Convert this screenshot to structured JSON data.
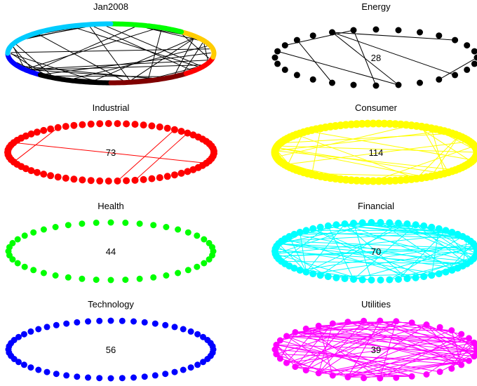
{
  "figure": {
    "panels": [
      {
        "key": "overview",
        "title": "Jan2008",
        "count": "",
        "color": "#000000",
        "nodes": 0,
        "edges": 40,
        "kind": "overview"
      },
      {
        "key": "energy",
        "title": "Energy",
        "count": "28",
        "color": "#000000",
        "nodes": 28,
        "edges": 8,
        "kind": "sector"
      },
      {
        "key": "industrial",
        "title": "Industrial",
        "count": "73",
        "color": "#ff0000",
        "nodes": 73,
        "edges": 4,
        "kind": "sector"
      },
      {
        "key": "consumer",
        "title": "Consumer",
        "count": "114",
        "color": "#ffff00",
        "nodes": 114,
        "edges": 32,
        "kind": "sector"
      },
      {
        "key": "health",
        "title": "Health",
        "count": "44",
        "color": "#00ff00",
        "nodes": 44,
        "edges": 0,
        "kind": "sector"
      },
      {
        "key": "financial",
        "title": "Financial",
        "count": "70",
        "color": "#00ffff",
        "nodes": 70,
        "edges": 90,
        "kind": "sector"
      },
      {
        "key": "technology",
        "title": "Technology",
        "count": "56",
        "color": "#0000ff",
        "nodes": 56,
        "edges": 0,
        "kind": "sector"
      },
      {
        "key": "utilities",
        "title": "Utilities",
        "count": "39",
        "color": "#ff00ff",
        "nodes": 39,
        "edges": 100,
        "kind": "sector"
      }
    ],
    "overview_ring": {
      "segments": [
        {
          "name": "Technology",
          "color": "#0000ff",
          "share": 0.13
        },
        {
          "name": "Energy",
          "color": "#000000",
          "share": 0.12
        },
        {
          "name": "Consumer dark",
          "color": "#800000",
          "share": 0.13
        },
        {
          "name": "Industrial",
          "color": "#ff0000",
          "share": 0.1
        },
        {
          "name": "Consumer",
          "color": "#ffcc00",
          "share": 0.15
        },
        {
          "name": "Health",
          "color": "#00ff00",
          "share": 0.12
        },
        {
          "name": "Financial",
          "color": "#00ccff",
          "share": 0.25
        }
      ]
    }
  }
}
